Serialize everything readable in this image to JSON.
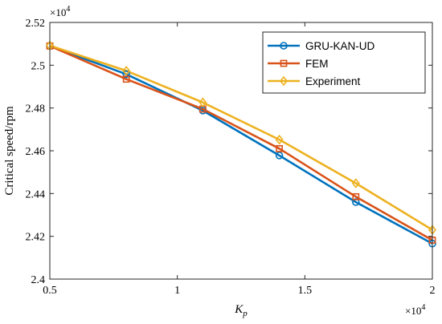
{
  "chart_data": {
    "type": "line",
    "xlabel": "K",
    "xlabel_sub": "p",
    "ylabel": "Critical speed/rpm",
    "x_multiplier": "×10",
    "y_multiplier": "×10",
    "multiplier_exp": "4",
    "xlim": [
      5000,
      20000
    ],
    "ylim": [
      24000,
      25200
    ],
    "x_ticks": [
      5000,
      10000,
      15000,
      20000
    ],
    "x_tick_labels": [
      "0.5",
      "1",
      "1.5",
      "2"
    ],
    "y_ticks": [
      24000,
      24200,
      24400,
      24600,
      24800,
      25000,
      25200
    ],
    "y_tick_labels": [
      "2.4",
      "2.42",
      "2.44",
      "2.46",
      "2.48",
      "2.5",
      "2.52"
    ],
    "grid": false,
    "legend_position": "top-right",
    "x": [
      5000,
      8000,
      11000,
      14000,
      17000,
      20000
    ],
    "series": [
      {
        "name": "GRU-KAN-UD",
        "color": "#0072BD",
        "marker": "circle",
        "values": [
          25090,
          24958,
          24788,
          24578,
          24360,
          24166
        ]
      },
      {
        "name": "FEM",
        "color": "#D95319",
        "marker": "square",
        "values": [
          25090,
          24935,
          24795,
          24610,
          24385,
          24182
        ]
      },
      {
        "name": "Experiment",
        "color": "#EDB120",
        "marker": "diamond",
        "values": [
          25092,
          24974,
          24826,
          24652,
          24448,
          24230
        ]
      }
    ]
  }
}
